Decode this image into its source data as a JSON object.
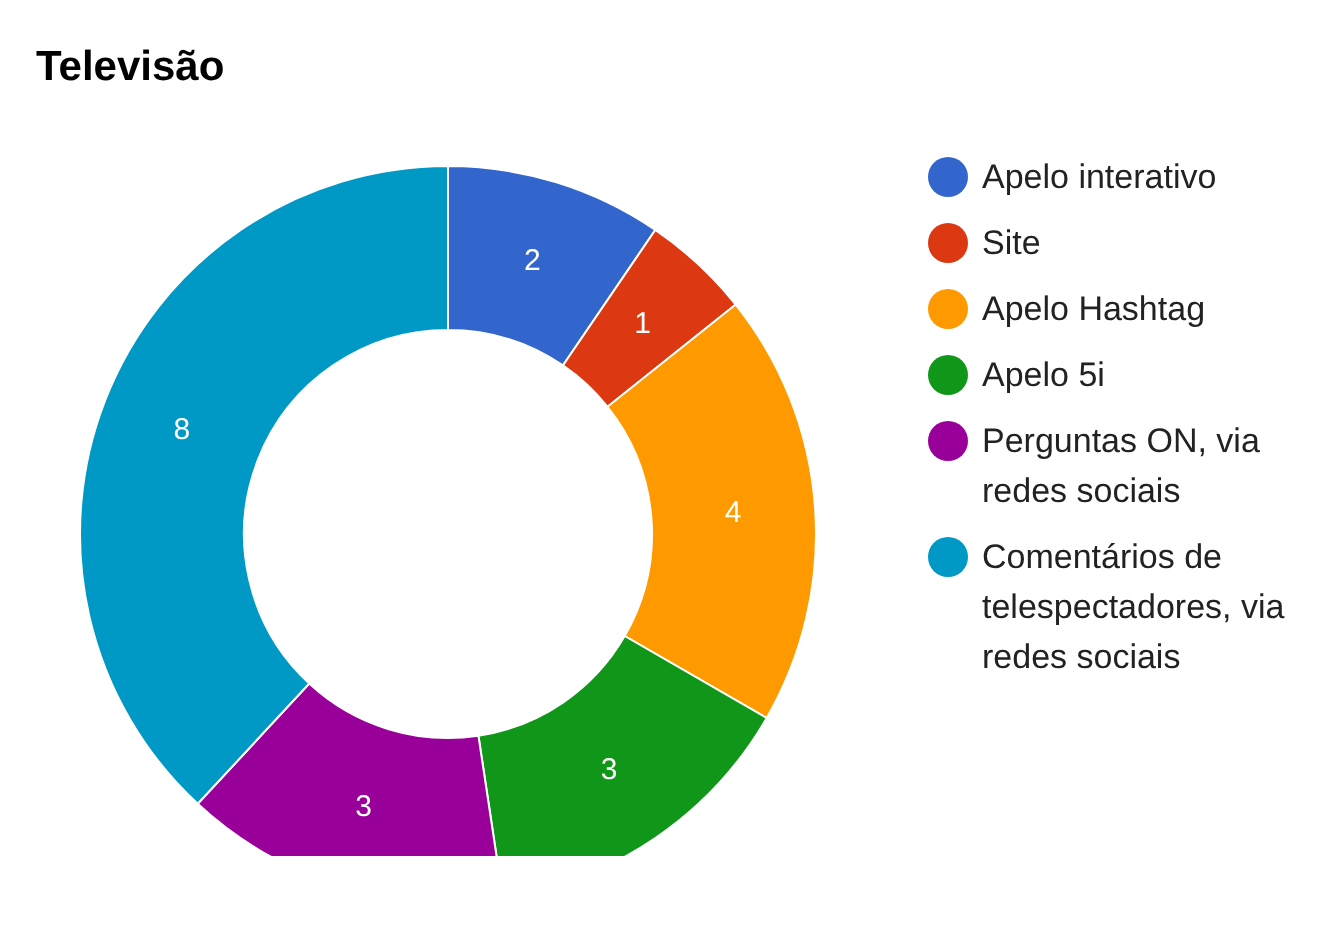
{
  "chart_data": {
    "type": "donut",
    "title": "Televisão",
    "categories": [
      "Apelo interativo",
      "Site",
      "Apelo Hashtag",
      "Apelo 5i",
      "Perguntas ON, via redes sociais",
      "Comentários de telespectadores, via redes sociais"
    ],
    "values": [
      2,
      1,
      4,
      3,
      3,
      8
    ],
    "colors": [
      "#3366cc",
      "#dc3912",
      "#ff9900",
      "#109618",
      "#990099",
      "#0099c6"
    ],
    "data_labels": true,
    "legend": "right"
  }
}
